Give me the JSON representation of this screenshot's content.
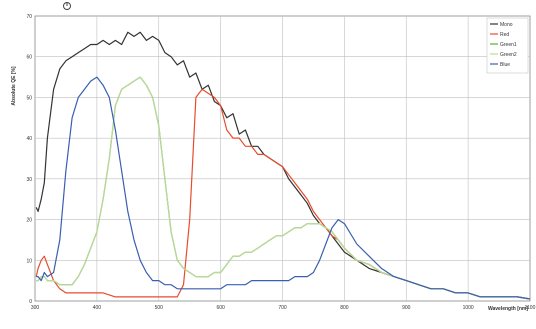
{
  "chart_data": {
    "type": "line",
    "title": "",
    "xlabel": "Wavelength [nm]",
    "ylabel": "Absolute QE [%]",
    "xlim": [
      300,
      1100
    ],
    "ylim": [
      0,
      70
    ],
    "grid": true,
    "legend_position": "top-right",
    "x_ticks": [
      300,
      400,
      500,
      600,
      700,
      800,
      900,
      1000,
      1100
    ],
    "y_ticks": [
      0,
      10,
      20,
      30,
      40,
      50,
      60,
      70
    ],
    "series": [
      {
        "name": "Mono",
        "color": "#333333",
        "x": [
          302,
          305,
          310,
          315,
          320,
          330,
          340,
          350,
          360,
          370,
          380,
          390,
          400,
          410,
          420,
          430,
          440,
          450,
          460,
          470,
          480,
          490,
          500,
          510,
          520,
          530,
          540,
          550,
          560,
          570,
          580,
          590,
          600,
          610,
          620,
          630,
          640,
          650,
          660,
          670,
          680,
          690,
          700,
          710,
          720,
          730,
          740,
          750,
          760,
          770,
          780,
          790,
          800,
          820,
          840,
          860,
          880,
          900,
          920,
          940,
          960,
          980,
          1000,
          1020,
          1040,
          1060,
          1080,
          1100
        ],
        "y": [
          23,
          22,
          25,
          29,
          40,
          52,
          57,
          59,
          60,
          61,
          62,
          63,
          63,
          64,
          63,
          64,
          63,
          66,
          65,
          66,
          64,
          65,
          64,
          61,
          60,
          58,
          59,
          55,
          56,
          52,
          53,
          49,
          48,
          45,
          46,
          41,
          42,
          38,
          38,
          36,
          35,
          34,
          33,
          30,
          28,
          26,
          24,
          21,
          19,
          18,
          16,
          14,
          12,
          10,
          8,
          7,
          6,
          5,
          4,
          3,
          3,
          2,
          2,
          1,
          1,
          1,
          1,
          0.5
        ],
        "legend_label": "Mono"
      },
      {
        "name": "Red",
        "color": "#e74c2e",
        "x": [
          302,
          305,
          310,
          315,
          320,
          330,
          340,
          350,
          360,
          370,
          380,
          390,
          400,
          410,
          420,
          430,
          440,
          450,
          460,
          470,
          480,
          490,
          500,
          510,
          520,
          530,
          540,
          550,
          560,
          570,
          580,
          590,
          600,
          610,
          620,
          630,
          640,
          650,
          660,
          670,
          680,
          690,
          700,
          710,
          720,
          730,
          740,
          750,
          760,
          770,
          780,
          790,
          800,
          820,
          840,
          860,
          880,
          900,
          920,
          940,
          960,
          980,
          1000,
          1020,
          1040,
          1060,
          1080,
          1100
        ],
        "y": [
          6,
          8,
          10,
          11,
          9,
          5,
          3,
          2,
          2,
          2,
          2,
          2,
          2,
          2,
          1.5,
          1,
          1,
          1,
          1,
          1,
          1,
          1,
          1,
          1,
          1,
          1,
          4,
          20,
          50,
          52,
          51,
          50,
          48,
          42,
          40,
          40,
          38,
          38,
          36,
          36,
          35,
          34,
          33,
          31,
          29,
          27,
          25,
          22,
          20,
          18,
          16,
          15,
          13,
          10,
          9,
          7,
          6,
          5,
          4,
          3,
          3,
          2,
          2,
          1,
          1,
          1,
          1,
          0.5
        ],
        "legend_label": "Red"
      },
      {
        "name": "Green",
        "color": "#5aae3a",
        "x": [
          302,
          305,
          310,
          315,
          320,
          330,
          340,
          350,
          360,
          370,
          380,
          390,
          400,
          410,
          420,
          430,
          440,
          450,
          460,
          470,
          480,
          490,
          500,
          510,
          520,
          530,
          540,
          550,
          560,
          570,
          580,
          590,
          600,
          610,
          620,
          630,
          640,
          650,
          660,
          670,
          680,
          690,
          700,
          710,
          720,
          730,
          740,
          750,
          760,
          770,
          780,
          790,
          800,
          820,
          840,
          860,
          880,
          900,
          920,
          940,
          960,
          980,
          1000,
          1020,
          1040,
          1060,
          1080,
          1100
        ],
        "y": [
          5,
          5,
          6,
          6,
          5,
          5,
          4,
          4,
          4,
          6,
          9,
          13,
          17,
          25,
          35,
          48,
          52,
          53,
          54,
          55,
          53,
          50,
          43,
          30,
          17,
          10,
          8,
          7,
          6,
          6,
          6,
          7,
          7,
          9,
          11,
          11,
          12,
          12,
          13,
          14,
          15,
          16,
          16,
          17,
          18,
          18,
          19,
          19,
          19,
          18,
          17,
          15,
          13,
          10,
          9,
          7,
          6,
          5,
          4,
          3,
          3,
          2,
          2,
          1,
          1,
          1,
          1,
          0.5
        ],
        "legend_label": "Green1"
      },
      {
        "name": "Green2",
        "color": "#bdd89a",
        "x": [
          302,
          305,
          310,
          315,
          320,
          330,
          340,
          350,
          360,
          370,
          380,
          390,
          400,
          410,
          420,
          430,
          440,
          450,
          460,
          470,
          480,
          490,
          500,
          510,
          520,
          530,
          540,
          550,
          560,
          570,
          580,
          590,
          600,
          610,
          620,
          630,
          640,
          650,
          660,
          670,
          680,
          690,
          700,
          710,
          720,
          730,
          740,
          750,
          760,
          770,
          780,
          790,
          800,
          820,
          840,
          860,
          880,
          900,
          920,
          940,
          960,
          980,
          1000,
          1020,
          1040,
          1060,
          1080,
          1100
        ],
        "y": [
          5,
          5,
          6,
          6,
          5,
          5,
          4,
          4,
          4,
          6,
          9,
          13,
          17,
          25,
          35,
          48,
          52,
          53,
          54,
          55,
          53,
          50,
          43,
          30,
          17,
          10,
          8,
          7,
          6,
          6,
          6,
          7,
          7,
          9,
          11,
          11,
          12,
          12,
          13,
          14,
          15,
          16,
          16,
          17,
          18,
          18,
          19,
          19,
          19,
          18,
          17,
          15,
          13,
          10,
          9,
          7,
          6,
          5,
          4,
          3,
          3,
          2,
          2,
          1,
          1,
          1,
          1,
          0.5
        ],
        "legend_label": "Green2"
      },
      {
        "name": "Blue",
        "color": "#3a5fb0",
        "x": [
          302,
          305,
          310,
          315,
          320,
          330,
          340,
          350,
          360,
          370,
          380,
          390,
          400,
          410,
          420,
          430,
          440,
          450,
          460,
          470,
          480,
          490,
          500,
          510,
          520,
          530,
          540,
          550,
          560,
          570,
          580,
          590,
          600,
          610,
          620,
          630,
          640,
          650,
          660,
          670,
          680,
          690,
          700,
          710,
          720,
          730,
          740,
          750,
          760,
          770,
          780,
          790,
          800,
          820,
          840,
          860,
          880,
          900,
          920,
          940,
          960,
          980,
          1000,
          1020,
          1040,
          1060,
          1080,
          1100
        ],
        "y": [
          6,
          6,
          5,
          7,
          6,
          7,
          15,
          32,
          45,
          50,
          52,
          54,
          55,
          53,
          50,
          42,
          32,
          22,
          15,
          10,
          7,
          5,
          5,
          4,
          4,
          3,
          3,
          3,
          3,
          3,
          3,
          3,
          3,
          4,
          4,
          4,
          4,
          5,
          5,
          5,
          5,
          5,
          5,
          5,
          6,
          6,
          6,
          7,
          10,
          14,
          18,
          20,
          19,
          14,
          11,
          8,
          6,
          5,
          4,
          3,
          3,
          2,
          2,
          1,
          1,
          1,
          1,
          0.5
        ],
        "legend_label": "Blue"
      }
    ]
  }
}
